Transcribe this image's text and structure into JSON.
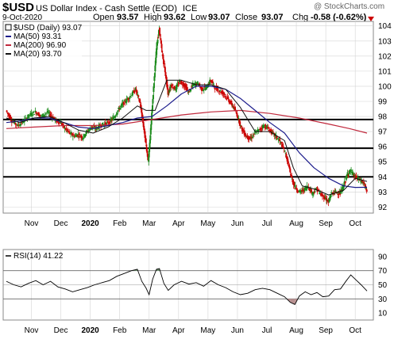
{
  "header": {
    "symbol": "$USD",
    "name": "US Dollar Index - Cash Settle (EOD)",
    "exchange": "ICE",
    "date": "9-Oct-2020",
    "open_label": "Open",
    "open": "93.57",
    "high_label": "High",
    "high": "93.62",
    "low_label": "Low",
    "low": "93.07",
    "close_label": "Close",
    "close": "93.07",
    "chg_label": "Chg",
    "chg": "-0.58 (-0.62%)",
    "chg_arrow": "down-triangle-icon",
    "credit": "@ StockCharts.com"
  },
  "legend": {
    "price": "$USD (Daily) 93.07",
    "ma50": "MA(50) 93.31",
    "ma200": "MA(200) 96.90",
    "ma20": "MA(20) 93.70",
    "rsi": "RSI(14) 41.22"
  },
  "colors": {
    "up": "#1a8a1a",
    "down": "#cc0000",
    "ma50": "#1c1c8c",
    "ma200": "#c0283c",
    "ma20": "#111111",
    "rsi_fill_over": "#6b8e6b",
    "rsi_fill_under": "#b89090",
    "grid": "#d4d4d4"
  },
  "chart_data": {
    "type": "candlestick",
    "title": "$USD US Dollar Index - Cash Settle (EOD) ICE",
    "grid": true,
    "y_axis_side": "right",
    "ylim": [
      91.6,
      104.3
    ],
    "y_ticks": [
      92,
      93,
      94,
      95,
      96,
      97,
      98,
      99,
      100,
      101,
      102,
      103,
      104
    ],
    "x_labels": [
      {
        "label": "Nov",
        "x": 1.4
      },
      {
        "label": "Dec",
        "x": 2.4
      },
      {
        "label": "2020",
        "x": 3.4,
        "bold": true
      },
      {
        "label": "Feb",
        "x": 4.4
      },
      {
        "label": "Mar",
        "x": 5.4
      },
      {
        "label": "Apr",
        "x": 6.4
      },
      {
        "label": "May",
        "x": 7.4
      },
      {
        "label": "Jun",
        "x": 8.4
      },
      {
        "label": "Jul",
        "x": 9.4
      },
      {
        "label": "Aug",
        "x": 10.4
      },
      {
        "label": "Sep",
        "x": 11.4
      },
      {
        "label": "Oct",
        "x": 12.4
      }
    ],
    "x_range": [
      0.55,
      12.8
    ],
    "horizontal_lines": [
      97.8,
      95.9,
      94.0
    ],
    "close_series": [
      [
        0.55,
        98.4
      ],
      [
        0.75,
        97.7
      ],
      [
        0.95,
        97.4
      ],
      [
        1.15,
        97.7
      ],
      [
        1.35,
        98.1
      ],
      [
        1.55,
        98.3
      ],
      [
        1.75,
        98.0
      ],
      [
        1.95,
        98.3
      ],
      [
        2.1,
        98.0
      ],
      [
        2.25,
        97.7
      ],
      [
        2.4,
        97.6
      ],
      [
        2.55,
        97.2
      ],
      [
        2.7,
        96.9
      ],
      [
        2.85,
        96.7
      ],
      [
        3.0,
        96.8
      ],
      [
        3.15,
        96.6
      ],
      [
        3.3,
        97.0
      ],
      [
        3.45,
        97.3
      ],
      [
        3.6,
        97.2
      ],
      [
        3.75,
        97.4
      ],
      [
        3.9,
        97.5
      ],
      [
        4.05,
        97.6
      ],
      [
        4.2,
        97.9
      ],
      [
        4.35,
        98.4
      ],
      [
        4.5,
        98.8
      ],
      [
        4.65,
        99.1
      ],
      [
        4.8,
        99.4
      ],
      [
        4.95,
        99.8
      ],
      [
        5.1,
        98.9
      ],
      [
        5.2,
        97.6
      ],
      [
        5.3,
        96.2
      ],
      [
        5.38,
        95.0
      ],
      [
        5.45,
        96.8
      ],
      [
        5.52,
        98.8
      ],
      [
        5.6,
        101.0
      ],
      [
        5.67,
        102.8
      ],
      [
        5.75,
        103.8
      ],
      [
        5.85,
        102.2
      ],
      [
        5.95,
        101.0
      ],
      [
        6.05,
        99.5
      ],
      [
        6.15,
        100.1
      ],
      [
        6.3,
        99.8
      ],
      [
        6.45,
        100.3
      ],
      [
        6.6,
        100.1
      ],
      [
        6.75,
        99.6
      ],
      [
        6.9,
        100.1
      ],
      [
        7.05,
        100.2
      ],
      [
        7.2,
        99.8
      ],
      [
        7.35,
        99.9
      ],
      [
        7.5,
        100.4
      ],
      [
        7.65,
        99.9
      ],
      [
        7.8,
        99.7
      ],
      [
        7.95,
        99.5
      ],
      [
        8.1,
        99.1
      ],
      [
        8.25,
        98.7
      ],
      [
        8.4,
        98.1
      ],
      [
        8.55,
        97.2
      ],
      [
        8.7,
        96.7
      ],
      [
        8.85,
        96.5
      ],
      [
        9.0,
        96.9
      ],
      [
        9.15,
        97.1
      ],
      [
        9.3,
        97.4
      ],
      [
        9.45,
        97.2
      ],
      [
        9.6,
        96.9
      ],
      [
        9.75,
        96.6
      ],
      [
        9.9,
        96.2
      ],
      [
        10.05,
        95.5
      ],
      [
        10.15,
        94.7
      ],
      [
        10.25,
        93.9
      ],
      [
        10.35,
        93.4
      ],
      [
        10.5,
        93.0
      ],
      [
        10.65,
        93.1
      ],
      [
        10.8,
        93.4
      ],
      [
        10.95,
        92.9
      ],
      [
        11.1,
        93.2
      ],
      [
        11.25,
        92.8
      ],
      [
        11.4,
        92.6
      ],
      [
        11.5,
        92.3
      ],
      [
        11.6,
        92.9
      ],
      [
        11.75,
        93.0
      ],
      [
        11.9,
        92.9
      ],
      [
        12.05,
        93.6
      ],
      [
        12.15,
        94.2
      ],
      [
        12.25,
        94.4
      ],
      [
        12.4,
        94.0
      ],
      [
        12.55,
        93.8
      ],
      [
        12.7,
        93.6
      ],
      [
        12.8,
        93.07
      ]
    ],
    "ma50_series": [
      [
        0.55,
        97.6
      ],
      [
        1.0,
        97.7
      ],
      [
        1.5,
        97.9
      ],
      [
        2.0,
        97.9
      ],
      [
        2.5,
        97.6
      ],
      [
        3.0,
        97.3
      ],
      [
        3.5,
        97.2
      ],
      [
        4.0,
        97.4
      ],
      [
        4.5,
        97.6
      ],
      [
        5.0,
        97.9
      ],
      [
        5.5,
        98.0
      ],
      [
        6.0,
        98.7
      ],
      [
        6.5,
        99.5
      ],
      [
        7.0,
        100.0
      ],
      [
        7.5,
        100.0
      ],
      [
        8.0,
        99.8
      ],
      [
        8.5,
        99.2
      ],
      [
        9.0,
        98.4
      ],
      [
        9.5,
        97.6
      ],
      [
        10.0,
        96.9
      ],
      [
        10.5,
        95.6
      ],
      [
        11.0,
        94.6
      ],
      [
        11.5,
        93.9
      ],
      [
        12.0,
        93.4
      ],
      [
        12.4,
        93.3
      ],
      [
        12.8,
        93.31
      ]
    ],
    "ma200_series": [
      [
        0.55,
        97.2
      ],
      [
        1.5,
        97.3
      ],
      [
        2.5,
        97.4
      ],
      [
        3.5,
        97.4
      ],
      [
        4.5,
        97.5
      ],
      [
        5.5,
        97.8
      ],
      [
        6.5,
        98.1
      ],
      [
        7.5,
        98.3
      ],
      [
        8.5,
        98.4
      ],
      [
        9.5,
        98.2
      ],
      [
        10.5,
        97.9
      ],
      [
        11.5,
        97.5
      ],
      [
        12.2,
        97.2
      ],
      [
        12.8,
        96.9
      ]
    ],
    "ma20_series": [
      [
        0.55,
        97.9
      ],
      [
        1.0,
        97.6
      ],
      [
        1.5,
        97.9
      ],
      [
        2.0,
        98.0
      ],
      [
        2.5,
        97.6
      ],
      [
        3.0,
        97.1
      ],
      [
        3.5,
        96.9
      ],
      [
        4.0,
        97.3
      ],
      [
        4.5,
        97.9
      ],
      [
        5.0,
        98.7
      ],
      [
        5.3,
        98.4
      ],
      [
        5.6,
        98.4
      ],
      [
        6.0,
        100.4
      ],
      [
        6.5,
        100.4
      ],
      [
        7.0,
        100.1
      ],
      [
        7.5,
        100.1
      ],
      [
        8.0,
        99.8
      ],
      [
        8.5,
        98.6
      ],
      [
        9.0,
        97.0
      ],
      [
        9.5,
        97.0
      ],
      [
        10.0,
        96.4
      ],
      [
        10.3,
        94.6
      ],
      [
        10.6,
        93.4
      ],
      [
        11.0,
        93.2
      ],
      [
        11.5,
        92.8
      ],
      [
        12.0,
        93.1
      ],
      [
        12.4,
        93.9
      ],
      [
        12.8,
        93.7
      ]
    ],
    "rsi": {
      "ylim": [
        0,
        100
      ],
      "y_ticks": [
        10,
        30,
        50,
        70,
        90
      ],
      "reference_lines": [
        30,
        50,
        70
      ],
      "series": [
        [
          0.55,
          55
        ],
        [
          0.8,
          50
        ],
        [
          1.05,
          47
        ],
        [
          1.3,
          52
        ],
        [
          1.55,
          56
        ],
        [
          1.8,
          50
        ],
        [
          2.05,
          55
        ],
        [
          2.3,
          47
        ],
        [
          2.55,
          44
        ],
        [
          2.8,
          40
        ],
        [
          3.05,
          43
        ],
        [
          3.3,
          46
        ],
        [
          3.55,
          50
        ],
        [
          3.8,
          53
        ],
        [
          4.05,
          56
        ],
        [
          4.3,
          62
        ],
        [
          4.55,
          66
        ],
        [
          4.8,
          70
        ],
        [
          5.0,
          72
        ],
        [
          5.15,
          55
        ],
        [
          5.3,
          45
        ],
        [
          5.4,
          36
        ],
        [
          5.52,
          58
        ],
        [
          5.65,
          72
        ],
        [
          5.75,
          73
        ],
        [
          5.9,
          52
        ],
        [
          6.05,
          42
        ],
        [
          6.25,
          50
        ],
        [
          6.5,
          55
        ],
        [
          6.75,
          51
        ],
        [
          7.0,
          53
        ],
        [
          7.25,
          48
        ],
        [
          7.5,
          56
        ],
        [
          7.75,
          50
        ],
        [
          8.0,
          46
        ],
        [
          8.25,
          40
        ],
        [
          8.5,
          36
        ],
        [
          8.75,
          38
        ],
        [
          9.0,
          43
        ],
        [
          9.25,
          45
        ],
        [
          9.5,
          43
        ],
        [
          9.75,
          38
        ],
        [
          10.0,
          33
        ],
        [
          10.2,
          25
        ],
        [
          10.35,
          22
        ],
        [
          10.5,
          34
        ],
        [
          10.7,
          40
        ],
        [
          10.9,
          36
        ],
        [
          11.1,
          39
        ],
        [
          11.3,
          33
        ],
        [
          11.5,
          34
        ],
        [
          11.7,
          43
        ],
        [
          11.9,
          44
        ],
        [
          12.1,
          56
        ],
        [
          12.25,
          64
        ],
        [
          12.45,
          56
        ],
        [
          12.6,
          50
        ],
        [
          12.8,
          41.22
        ]
      ]
    }
  }
}
